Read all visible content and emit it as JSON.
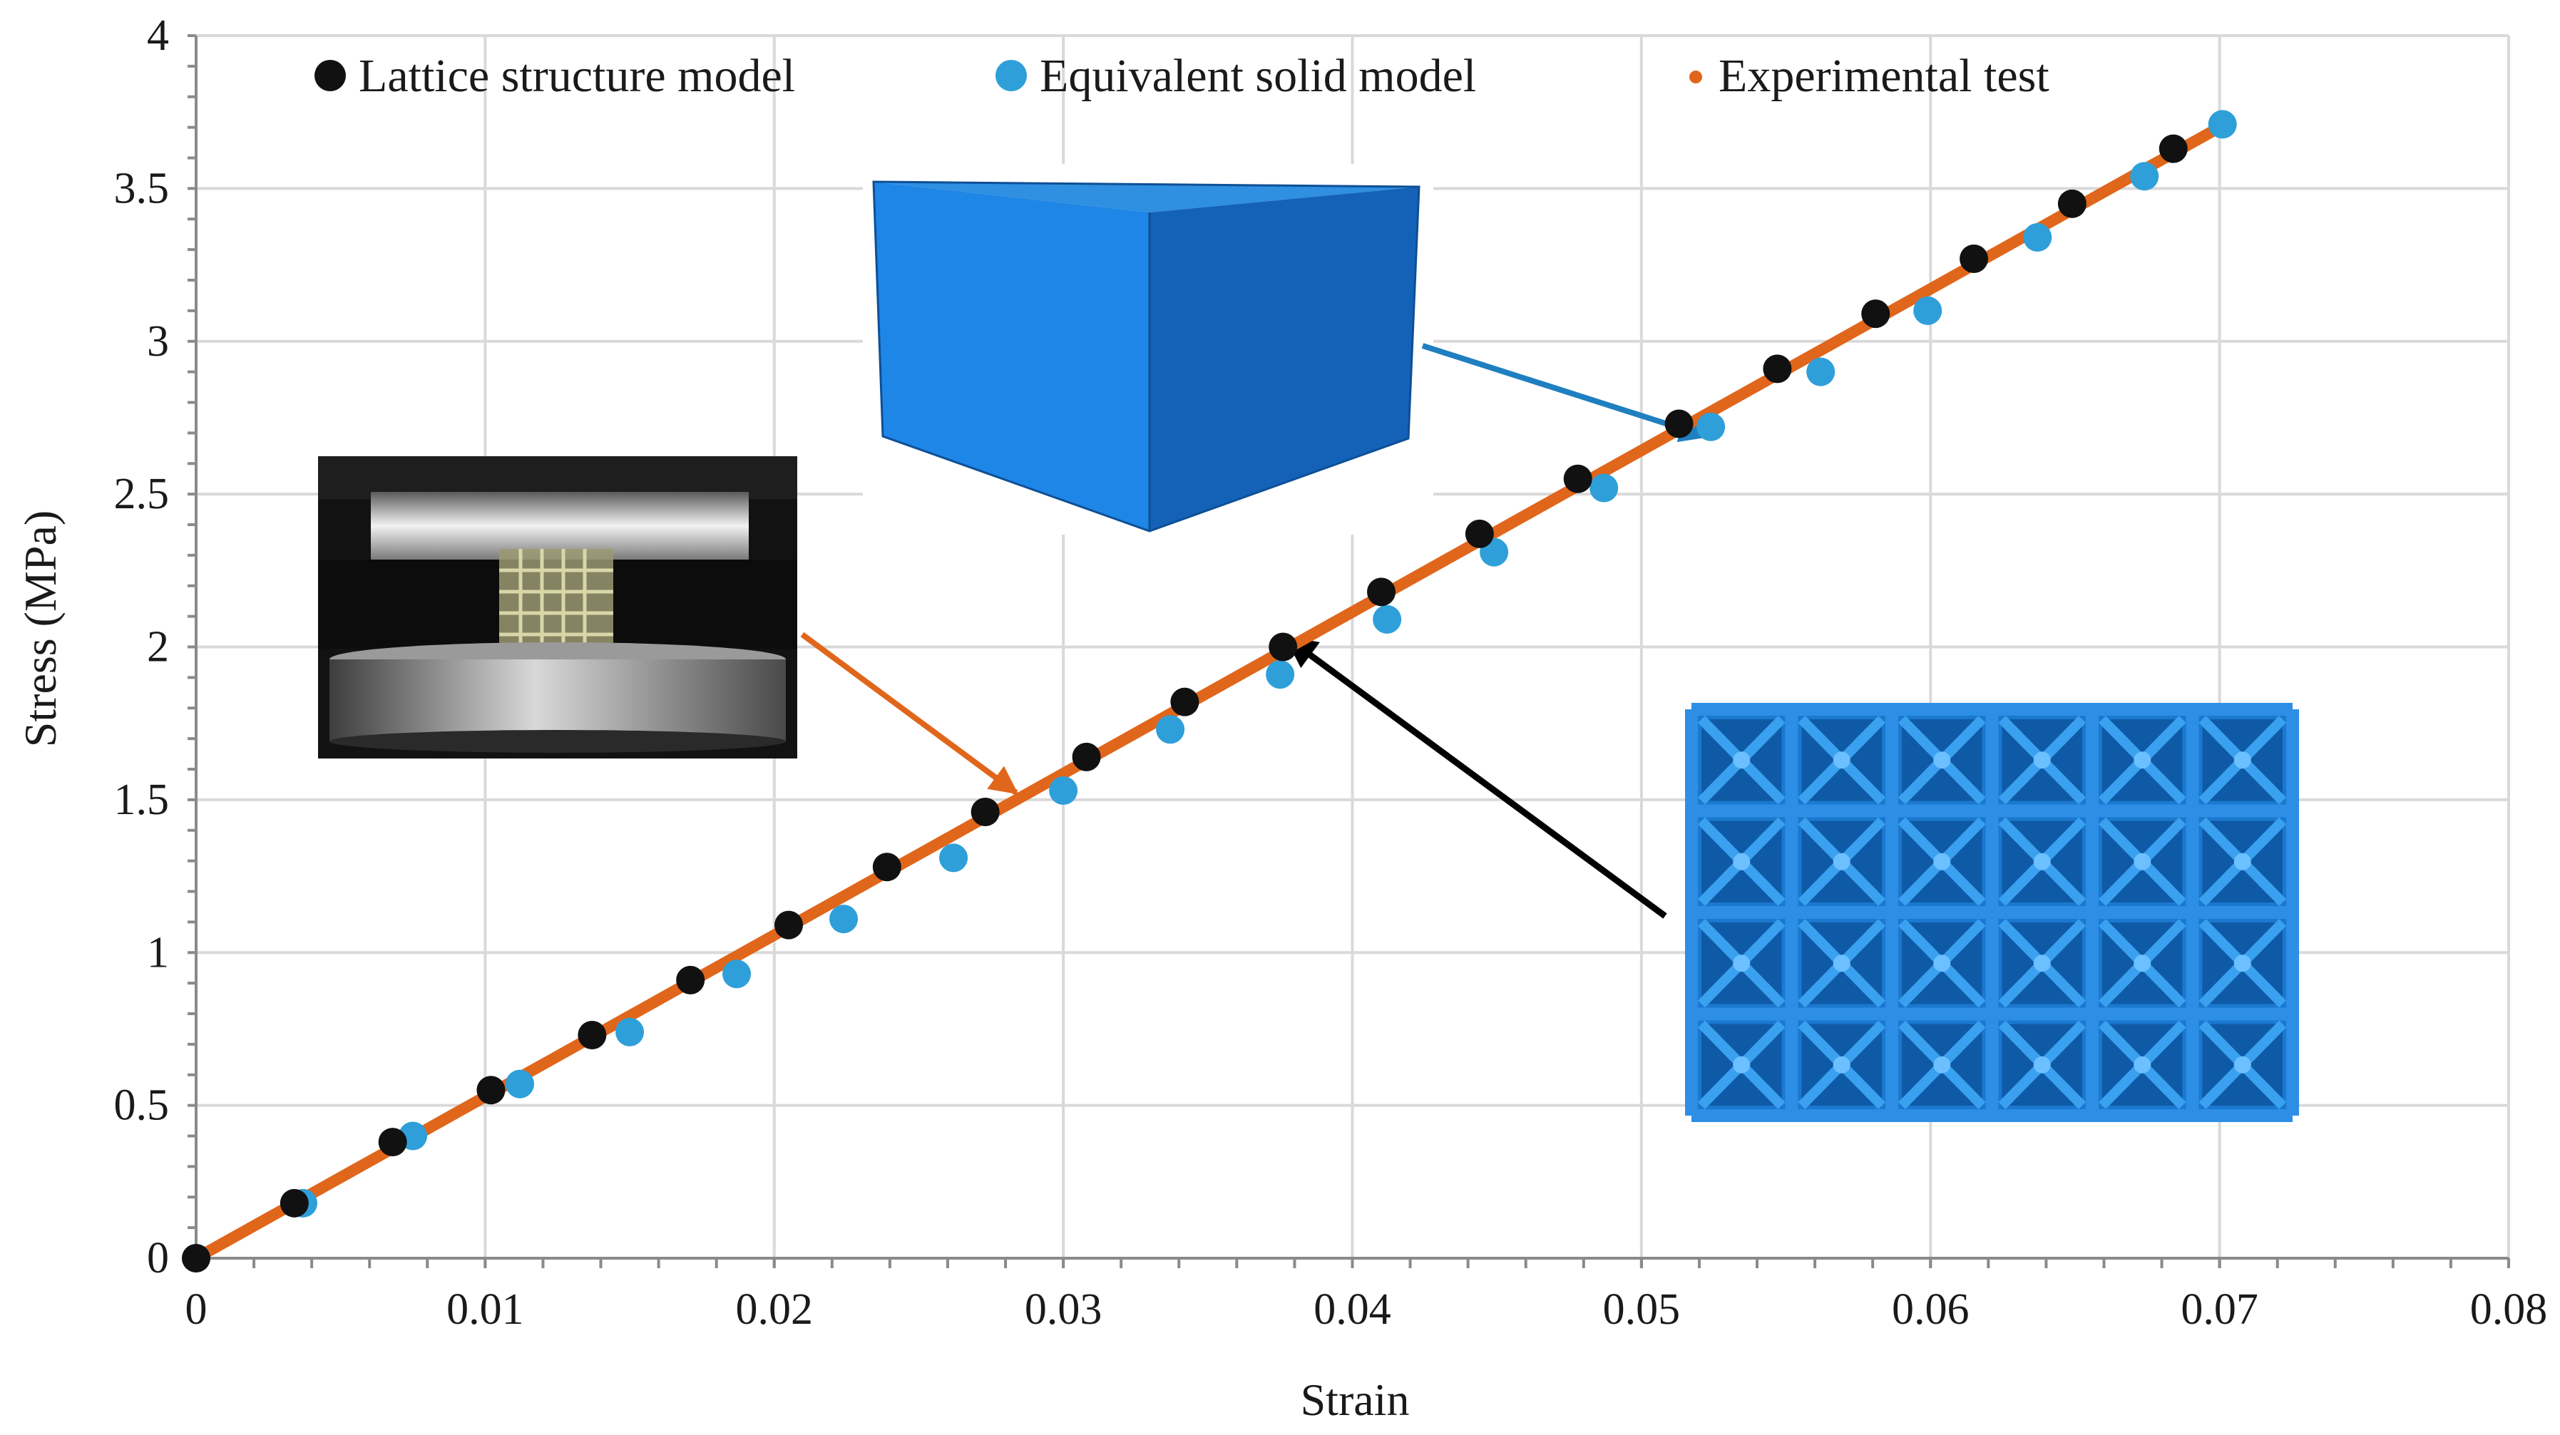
{
  "chart_data": {
    "type": "scatter",
    "xlabel": "Strain",
    "ylabel": "Stress (MPa)",
    "xlim": [
      0,
      0.08
    ],
    "ylim": [
      0,
      4
    ],
    "x_ticks": [
      "0",
      "0.01",
      "0.02",
      "0.03",
      "0.04",
      "0.05",
      "0.06",
      "0.07",
      "0.08"
    ],
    "y_ticks": [
      "0",
      "0.5",
      "1",
      "1.5",
      "2",
      "2.5",
      "3",
      "3.5",
      "4"
    ],
    "grid": true,
    "legend_position": "top",
    "series": [
      {
        "name": "Lattice structure model",
        "color": "#111111",
        "marker": "circle",
        "points": [
          [
            0,
            0
          ],
          [
            0.0034,
            0.18
          ],
          [
            0.0068,
            0.38
          ],
          [
            0.0102,
            0.55
          ],
          [
            0.0137,
            0.73
          ],
          [
            0.0171,
            0.91
          ],
          [
            0.0205,
            1.09
          ],
          [
            0.0239,
            1.28
          ],
          [
            0.0273,
            1.46
          ],
          [
            0.0308,
            1.64
          ],
          [
            0.0342,
            1.82
          ],
          [
            0.0376,
            2.0
          ],
          [
            0.041,
            2.18
          ],
          [
            0.0444,
            2.37
          ],
          [
            0.0478,
            2.55
          ],
          [
            0.0513,
            2.73
          ],
          [
            0.0547,
            2.91
          ],
          [
            0.0581,
            3.09
          ],
          [
            0.0615,
            3.27
          ],
          [
            0.0649,
            3.45
          ],
          [
            0.0684,
            3.63
          ]
        ]
      },
      {
        "name": "Equivalent solid model",
        "color": "#2e9fd9",
        "marker": "circle",
        "points": [
          [
            0,
            0
          ],
          [
            0.0037,
            0.18
          ],
          [
            0.0075,
            0.4
          ],
          [
            0.0112,
            0.57
          ],
          [
            0.015,
            0.74
          ],
          [
            0.0187,
            0.93
          ],
          [
            0.0224,
            1.11
          ],
          [
            0.0262,
            1.31
          ],
          [
            0.03,
            1.53
          ],
          [
            0.0337,
            1.73
          ],
          [
            0.0375,
            1.91
          ],
          [
            0.0412,
            2.09
          ],
          [
            0.0449,
            2.31
          ],
          [
            0.0487,
            2.52
          ],
          [
            0.0524,
            2.72
          ],
          [
            0.0562,
            2.9
          ],
          [
            0.0599,
            3.1
          ],
          [
            0.0637,
            3.34
          ],
          [
            0.0674,
            3.54
          ],
          [
            0.0701,
            3.71
          ]
        ]
      },
      {
        "name": "Experimental test",
        "color": "#e0661b",
        "marker": "dot",
        "points": [
          [
            0,
            0
          ],
          [
            0.07,
            3.7
          ]
        ]
      }
    ],
    "insets": [
      {
        "name": "test-rig-photo",
        "points_to": [
          0.028,
          1.48
        ],
        "arrow_color": "#e0661b"
      },
      {
        "name": "solid-cube-model",
        "points_to": [
          0.052,
          2.72
        ],
        "arrow_color": "#1f7fc0"
      },
      {
        "name": "lattice-structure-model",
        "points_to": [
          0.038,
          2.01
        ],
        "arrow_color": "#000000"
      }
    ]
  }
}
